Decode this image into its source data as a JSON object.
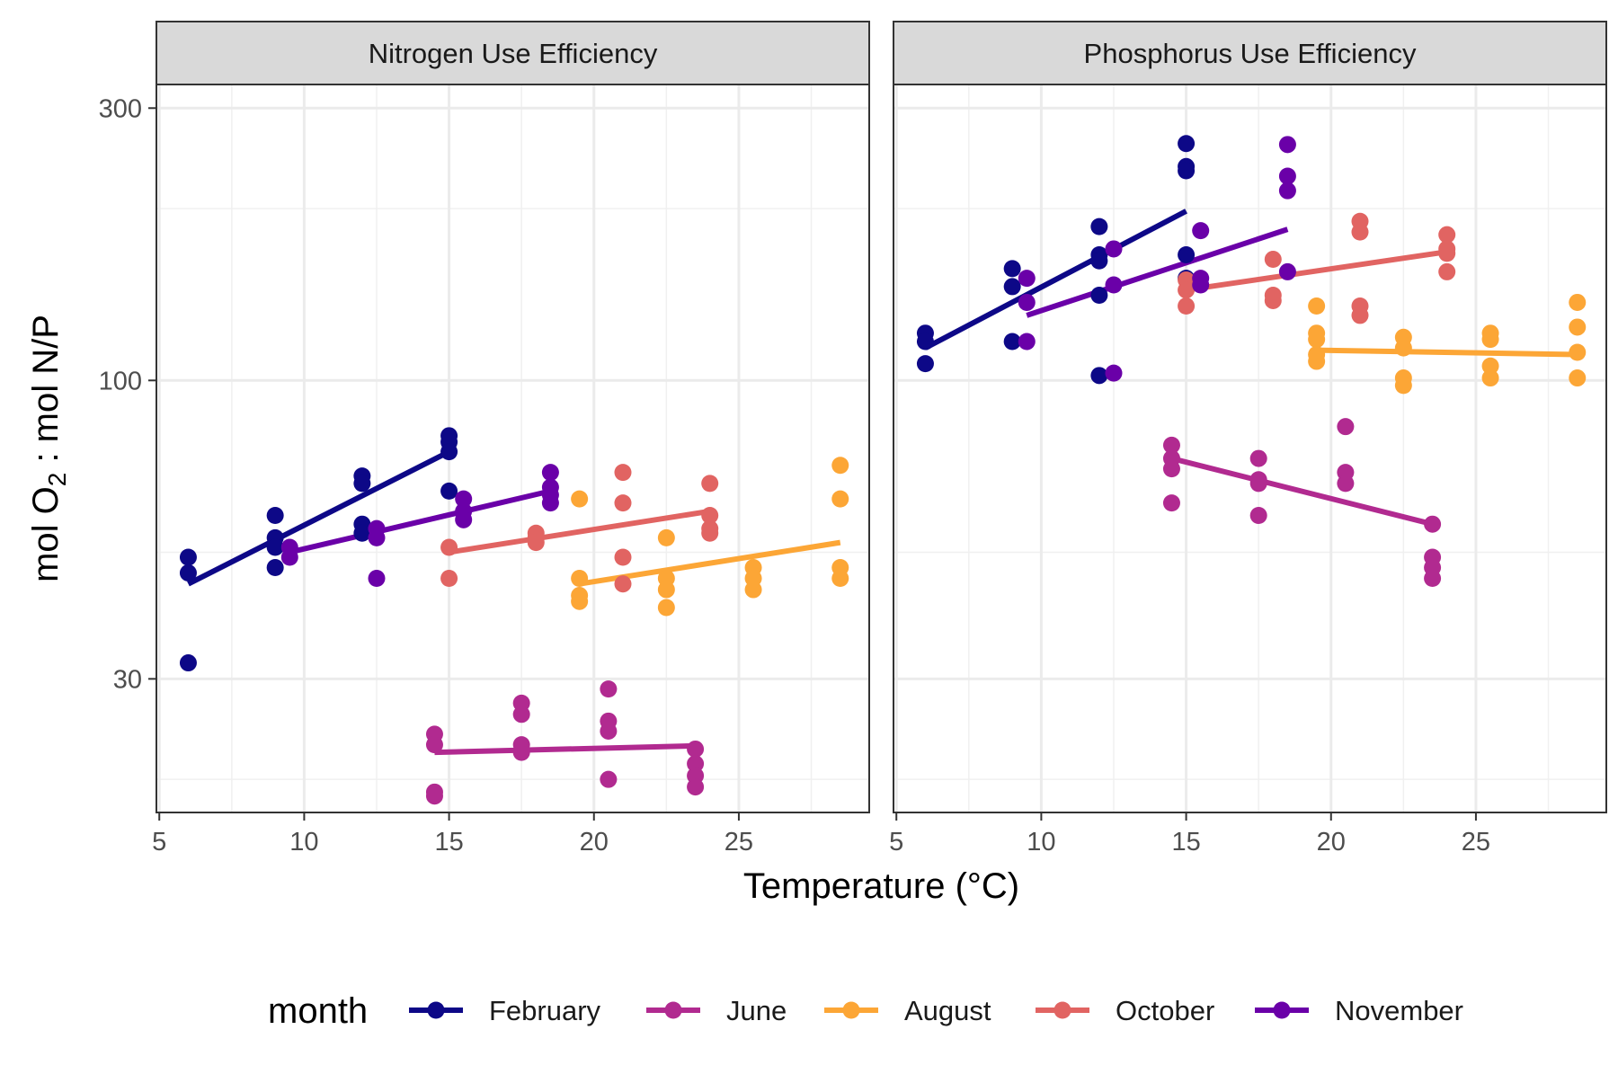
{
  "chart_data": {
    "type": "scatter",
    "facets": [
      "Nitrogen Use Efficiency",
      "Phosphorus Use Efficiency"
    ],
    "xlabel": "Temperature (°C)",
    "ylabel": {
      "pre": "mol O",
      "sub": "2",
      "post": " : mol N/P"
    },
    "x_ticks": [
      "5",
      "10",
      "15",
      "20",
      "25"
    ],
    "y_ticks": [
      "30",
      "100",
      "300"
    ],
    "y_scale": "log",
    "ylim": [
      17.5,
      330
    ],
    "xlim": [
      4.9,
      29.5
    ],
    "grid": true,
    "legend": {
      "title": "month",
      "position": "bottom"
    },
    "series": [
      {
        "name": "February",
        "color": "#0d0887",
        "points": {
          "Nitrogen Use Efficiency": [
            [
              6,
              49
            ],
            [
              6,
              46
            ],
            [
              6,
              32
            ],
            [
              9,
              58
            ],
            [
              9,
              53
            ],
            [
              9,
              51
            ],
            [
              9,
              47
            ],
            [
              12,
              68
            ],
            [
              12,
              66
            ],
            [
              12,
              56
            ],
            [
              12,
              54
            ],
            [
              15,
              80
            ],
            [
              15,
              78
            ],
            [
              15,
              75
            ],
            [
              15,
              64
            ]
          ],
          "Phosphorus Use Efficiency": [
            [
              6,
              121
            ],
            [
              6,
              117
            ],
            [
              6,
              107
            ],
            [
              9,
              157
            ],
            [
              9,
              146
            ],
            [
              9,
              117
            ],
            [
              12,
              186
            ],
            [
              12,
              166
            ],
            [
              12,
              162
            ],
            [
              12,
              141
            ],
            [
              12,
              102
            ],
            [
              15,
              260
            ],
            [
              15,
              237
            ],
            [
              15,
              233
            ],
            [
              15,
              166
            ],
            [
              15,
              151
            ]
          ]
        },
        "fit": {
          "Nitrogen Use Efficiency": [
            [
              6,
              44
            ],
            [
              15,
              75
            ]
          ],
          "Phosphorus Use Efficiency": [
            [
              6,
              114
            ],
            [
              15,
              198
            ]
          ]
        }
      },
      {
        "name": "June",
        "color": "#b12a90",
        "points": {
          "Nitrogen Use Efficiency": [
            [
              14.5,
              24
            ],
            [
              14.5,
              23
            ],
            [
              14.5,
              19
            ],
            [
              14.5,
              18.7
            ],
            [
              17.5,
              27.2
            ],
            [
              17.5,
              26
            ],
            [
              17.5,
              23
            ],
            [
              17.5,
              22.3
            ],
            [
              20.5,
              28.8
            ],
            [
              20.5,
              25.3
            ],
            [
              20.5,
              24.3
            ],
            [
              20.5,
              20
            ],
            [
              23.5,
              22.6
            ],
            [
              23.5,
              21.3
            ],
            [
              23.5,
              20.3
            ],
            [
              23.5,
              19.4
            ]
          ],
          "Phosphorus Use Efficiency": [
            [
              14.5,
              77
            ],
            [
              14.5,
              73
            ],
            [
              14.5,
              70
            ],
            [
              14.5,
              61
            ],
            [
              17.5,
              73
            ],
            [
              17.5,
              67
            ],
            [
              17.5,
              66
            ],
            [
              17.5,
              58
            ],
            [
              20.5,
              83
            ],
            [
              20.5,
              69
            ],
            [
              20.5,
              66
            ],
            [
              23.5,
              56
            ],
            [
              23.5,
              49
            ],
            [
              23.5,
              47
            ],
            [
              23.5,
              45
            ]
          ]
        },
        "fit": {
          "Nitrogen Use Efficiency": [
            [
              14.5,
              22.3
            ],
            [
              23.5,
              22.9
            ]
          ],
          "Phosphorus Use Efficiency": [
            [
              14.5,
              73
            ],
            [
              23.5,
              56
            ]
          ]
        }
      },
      {
        "name": "August",
        "color": "#fca636",
        "points": {
          "Nitrogen Use Efficiency": [
            [
              19.5,
              62
            ],
            [
              19.5,
              45
            ],
            [
              19.5,
              42
            ],
            [
              19.5,
              41
            ],
            [
              22.5,
              53
            ],
            [
              22.5,
              45
            ],
            [
              22.5,
              43
            ],
            [
              22.5,
              40
            ],
            [
              25.5,
              47
            ],
            [
              25.5,
              45
            ],
            [
              25.5,
              43
            ],
            [
              28.5,
              71
            ],
            [
              28.5,
              62
            ],
            [
              28.5,
              47
            ],
            [
              28.5,
              45
            ]
          ],
          "Phosphorus Use Efficiency": [
            [
              19.5,
              135
            ],
            [
              19.5,
              121
            ],
            [
              19.5,
              118
            ],
            [
              19.5,
              111
            ],
            [
              19.5,
              108
            ],
            [
              22.5,
              119
            ],
            [
              22.5,
              114
            ],
            [
              22.5,
              101
            ],
            [
              22.5,
              98
            ],
            [
              25.5,
              121
            ],
            [
              25.5,
              118
            ],
            [
              25.5,
              106
            ],
            [
              25.5,
              101
            ],
            [
              28.5,
              137
            ],
            [
              28.5,
              124
            ],
            [
              28.5,
              112
            ],
            [
              28.5,
              101
            ]
          ]
        },
        "fit": {
          "Nitrogen Use Efficiency": [
            [
              19.5,
              44
            ],
            [
              28.5,
              52
            ]
          ],
          "Phosphorus Use Efficiency": [
            [
              19.5,
              113
            ],
            [
              28.5,
              111
            ]
          ]
        }
      },
      {
        "name": "October",
        "color": "#e16462",
        "points": {
          "Nitrogen Use Efficiency": [
            [
              15,
              51
            ],
            [
              15,
              45
            ],
            [
              18,
              54
            ],
            [
              18,
              53
            ],
            [
              18,
              52
            ],
            [
              21,
              69
            ],
            [
              21,
              61
            ],
            [
              21,
              49
            ],
            [
              21,
              44
            ],
            [
              24,
              66
            ],
            [
              24,
              58
            ],
            [
              24,
              55
            ],
            [
              24,
              54
            ]
          ],
          "Phosphorus Use Efficiency": [
            [
              15,
              150
            ],
            [
              15,
              144
            ],
            [
              15,
              135
            ],
            [
              18,
              163
            ],
            [
              18,
              141
            ],
            [
              18,
              138
            ],
            [
              21,
              190
            ],
            [
              21,
              182
            ],
            [
              21,
              135
            ],
            [
              21,
              130
            ],
            [
              24,
              180
            ],
            [
              24,
              170
            ],
            [
              24,
              167
            ],
            [
              24,
              155
            ]
          ]
        },
        "fit": {
          "Nitrogen Use Efficiency": [
            [
              15,
              50
            ],
            [
              24,
              59
            ]
          ],
          "Phosphorus Use Efficiency": [
            [
              15,
              144
            ],
            [
              24,
              168
            ]
          ]
        }
      },
      {
        "name": "November",
        "color": "#6a00a8",
        "points": {
          "Nitrogen Use Efficiency": [
            [
              9.5,
              51
            ],
            [
              9.5,
              49
            ],
            [
              12.5,
              55
            ],
            [
              12.5,
              53
            ],
            [
              12.5,
              45
            ],
            [
              15.5,
              62
            ],
            [
              15.5,
              59
            ],
            [
              15.5,
              57
            ],
            [
              18.5,
              69
            ],
            [
              18.5,
              65
            ],
            [
              18.5,
              63
            ],
            [
              18.5,
              61
            ]
          ],
          "Phosphorus Use Efficiency": [
            [
              9.5,
              151
            ],
            [
              9.5,
              137
            ],
            [
              9.5,
              117
            ],
            [
              12.5,
              170
            ],
            [
              12.5,
              147
            ],
            [
              12.5,
              103
            ],
            [
              15.5,
              183
            ],
            [
              15.5,
              151
            ],
            [
              15.5,
              147
            ],
            [
              18.5,
              259
            ],
            [
              18.5,
              228
            ],
            [
              18.5,
              215
            ],
            [
              18.5,
              155
            ]
          ]
        },
        "fit": {
          "Nitrogen Use Efficiency": [
            [
              9.5,
              50
            ],
            [
              18.5,
              64
            ]
          ],
          "Phosphorus Use Efficiency": [
            [
              9.5,
              130
            ],
            [
              18.5,
              184
            ]
          ]
        }
      }
    ]
  }
}
